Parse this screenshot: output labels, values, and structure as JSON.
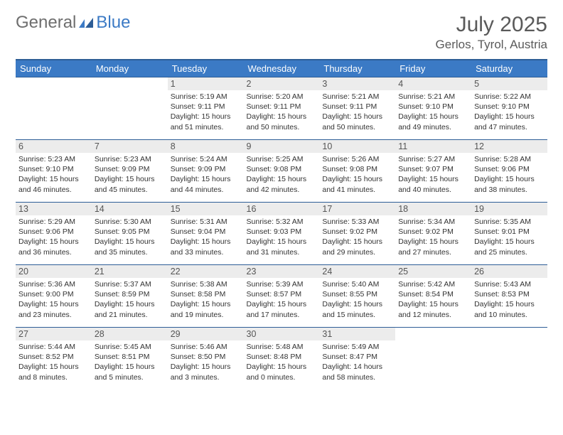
{
  "colors": {
    "header_bg": "#3b7ac5",
    "header_border": "#2d5d96",
    "daynum_bg": "#ececec",
    "text": "#333333",
    "title_text": "#5a5a5a",
    "logo_gray": "#6e6e6e",
    "logo_blue": "#3b7ac5",
    "page_bg": "#ffffff"
  },
  "logo": {
    "text_a": "General",
    "text_b": "Blue"
  },
  "title": "July 2025",
  "location": "Gerlos, Tyrol, Austria",
  "weekdays": [
    "Sunday",
    "Monday",
    "Tuesday",
    "Wednesday",
    "Thursday",
    "Friday",
    "Saturday"
  ],
  "calendar": {
    "type": "table",
    "columns": 7,
    "weeks": [
      [
        null,
        null,
        {
          "n": "1",
          "sr": "5:19 AM",
          "ss": "9:11 PM",
          "dl": "15 hours and 51 minutes."
        },
        {
          "n": "2",
          "sr": "5:20 AM",
          "ss": "9:11 PM",
          "dl": "15 hours and 50 minutes."
        },
        {
          "n": "3",
          "sr": "5:21 AM",
          "ss": "9:11 PM",
          "dl": "15 hours and 50 minutes."
        },
        {
          "n": "4",
          "sr": "5:21 AM",
          "ss": "9:10 PM",
          "dl": "15 hours and 49 minutes."
        },
        {
          "n": "5",
          "sr": "5:22 AM",
          "ss": "9:10 PM",
          "dl": "15 hours and 47 minutes."
        }
      ],
      [
        {
          "n": "6",
          "sr": "5:23 AM",
          "ss": "9:10 PM",
          "dl": "15 hours and 46 minutes."
        },
        {
          "n": "7",
          "sr": "5:23 AM",
          "ss": "9:09 PM",
          "dl": "15 hours and 45 minutes."
        },
        {
          "n": "8",
          "sr": "5:24 AM",
          "ss": "9:09 PM",
          "dl": "15 hours and 44 minutes."
        },
        {
          "n": "9",
          "sr": "5:25 AM",
          "ss": "9:08 PM",
          "dl": "15 hours and 42 minutes."
        },
        {
          "n": "10",
          "sr": "5:26 AM",
          "ss": "9:08 PM",
          "dl": "15 hours and 41 minutes."
        },
        {
          "n": "11",
          "sr": "5:27 AM",
          "ss": "9:07 PM",
          "dl": "15 hours and 40 minutes."
        },
        {
          "n": "12",
          "sr": "5:28 AM",
          "ss": "9:06 PM",
          "dl": "15 hours and 38 minutes."
        }
      ],
      [
        {
          "n": "13",
          "sr": "5:29 AM",
          "ss": "9:06 PM",
          "dl": "15 hours and 36 minutes."
        },
        {
          "n": "14",
          "sr": "5:30 AM",
          "ss": "9:05 PM",
          "dl": "15 hours and 35 minutes."
        },
        {
          "n": "15",
          "sr": "5:31 AM",
          "ss": "9:04 PM",
          "dl": "15 hours and 33 minutes."
        },
        {
          "n": "16",
          "sr": "5:32 AM",
          "ss": "9:03 PM",
          "dl": "15 hours and 31 minutes."
        },
        {
          "n": "17",
          "sr": "5:33 AM",
          "ss": "9:02 PM",
          "dl": "15 hours and 29 minutes."
        },
        {
          "n": "18",
          "sr": "5:34 AM",
          "ss": "9:02 PM",
          "dl": "15 hours and 27 minutes."
        },
        {
          "n": "19",
          "sr": "5:35 AM",
          "ss": "9:01 PM",
          "dl": "15 hours and 25 minutes."
        }
      ],
      [
        {
          "n": "20",
          "sr": "5:36 AM",
          "ss": "9:00 PM",
          "dl": "15 hours and 23 minutes."
        },
        {
          "n": "21",
          "sr": "5:37 AM",
          "ss": "8:59 PM",
          "dl": "15 hours and 21 minutes."
        },
        {
          "n": "22",
          "sr": "5:38 AM",
          "ss": "8:58 PM",
          "dl": "15 hours and 19 minutes."
        },
        {
          "n": "23",
          "sr": "5:39 AM",
          "ss": "8:57 PM",
          "dl": "15 hours and 17 minutes."
        },
        {
          "n": "24",
          "sr": "5:40 AM",
          "ss": "8:55 PM",
          "dl": "15 hours and 15 minutes."
        },
        {
          "n": "25",
          "sr": "5:42 AM",
          "ss": "8:54 PM",
          "dl": "15 hours and 12 minutes."
        },
        {
          "n": "26",
          "sr": "5:43 AM",
          "ss": "8:53 PM",
          "dl": "15 hours and 10 minutes."
        }
      ],
      [
        {
          "n": "27",
          "sr": "5:44 AM",
          "ss": "8:52 PM",
          "dl": "15 hours and 8 minutes."
        },
        {
          "n": "28",
          "sr": "5:45 AM",
          "ss": "8:51 PM",
          "dl": "15 hours and 5 minutes."
        },
        {
          "n": "29",
          "sr": "5:46 AM",
          "ss": "8:50 PM",
          "dl": "15 hours and 3 minutes."
        },
        {
          "n": "30",
          "sr": "5:48 AM",
          "ss": "8:48 PM",
          "dl": "15 hours and 0 minutes."
        },
        {
          "n": "31",
          "sr": "5:49 AM",
          "ss": "8:47 PM",
          "dl": "14 hours and 58 minutes."
        },
        null,
        null
      ]
    ],
    "labels": {
      "sunrise": "Sunrise:",
      "sunset": "Sunset:",
      "daylight": "Daylight:"
    }
  }
}
